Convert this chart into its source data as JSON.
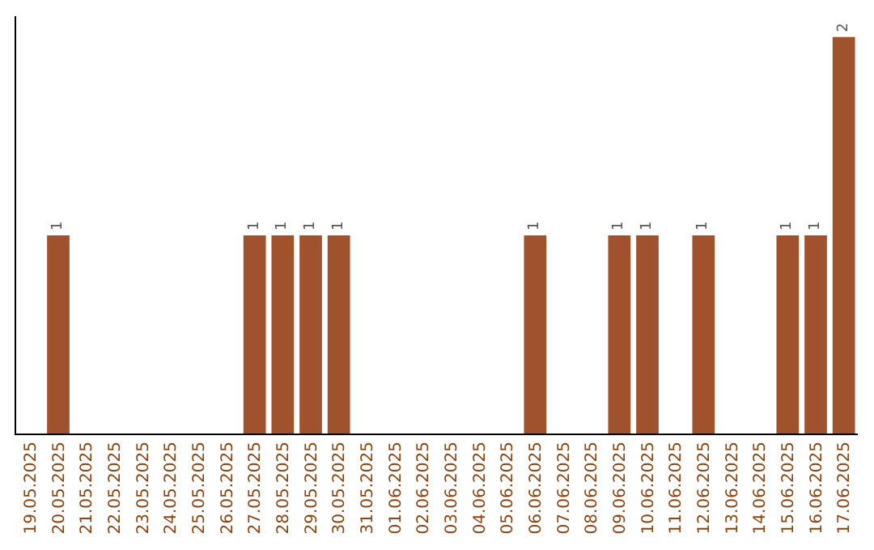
{
  "chart_data": {
    "type": "bar",
    "categories": [
      "19.05.2025",
      "20.05.2025",
      "21.05.2025",
      "22.05.2025",
      "23.05.2025",
      "24.05.2025",
      "25.05.2025",
      "26.05.2025",
      "27.05.2025",
      "28.05.2025",
      "29.05.2025",
      "30.05.2025",
      "31.05.2025",
      "01.06.2025",
      "02.06.2025",
      "03.06.2025",
      "04.06.2025",
      "05.06.2025",
      "06.06.2025",
      "07.06.2025",
      "08.06.2025",
      "09.06.2025",
      "10.06.2025",
      "11.06.2025",
      "12.06.2025",
      "13.06.2025",
      "14.06.2025",
      "15.06.2025",
      "16.06.2025",
      "17.06.2025"
    ],
    "values": [
      0,
      1,
      0,
      0,
      0,
      0,
      0,
      0,
      1,
      1,
      1,
      1,
      0,
      0,
      0,
      0,
      0,
      0,
      1,
      0,
      0,
      1,
      1,
      0,
      1,
      0,
      0,
      1,
      1,
      2
    ],
    "value_labels": [
      null,
      "1",
      null,
      null,
      null,
      null,
      null,
      null,
      "1",
      "1",
      "1",
      "1",
      null,
      null,
      null,
      null,
      null,
      null,
      "1",
      null,
      null,
      "1",
      "1",
      null,
      "1",
      null,
      null,
      "1",
      "1",
      "2"
    ],
    "color": "#a0522d",
    "grid": false,
    "legend": false,
    "tick_labels": "x"
  }
}
